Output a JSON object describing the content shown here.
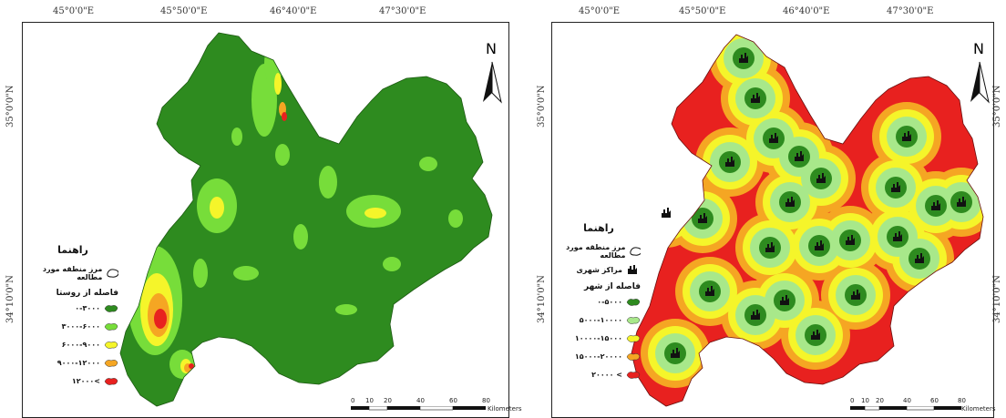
{
  "left_map": {
    "top_ticks": [
      "45°0'0\"E",
      "45°50'0\"E",
      "46°40'0\"E",
      "47°30'0\"E"
    ],
    "side_ticks": [
      "35°0'0\"N",
      "34°10'0\"N"
    ],
    "north_label": "N",
    "legend": {
      "title": "راهنما",
      "boundary_label": "مرز منطقه مورد مطالعه",
      "subtitle": "فاصله از روستا",
      "classes": [
        {
          "label": "۰-۳۰۰۰",
          "color": "#2e8b1f"
        },
        {
          "label": "۳۰۰۰-۶۰۰۰",
          "color": "#77dd3a"
        },
        {
          "label": "۶۰۰۰-۹۰۰۰",
          "color": "#f5f52a"
        },
        {
          "label": "۹۰۰۰-۱۲۰۰۰",
          "color": "#f5a623"
        },
        {
          "label": ">۱۲۰۰۰",
          "color": "#e8211f"
        }
      ]
    },
    "scale": {
      "ticks": [
        "0",
        "10",
        "20",
        "40",
        "60",
        "80"
      ],
      "unit": "Kilometers"
    }
  },
  "right_map": {
    "top_ticks": [
      "45°0'0\"E",
      "45°50'0\"E",
      "46°40'0\"E",
      "47°30'0\"E"
    ],
    "side_ticks": [
      "35°0'0\"N",
      "34°10'0\"N"
    ],
    "right_side_ticks": [
      "35°0'0\"N",
      "34°10'0\"N"
    ],
    "north_label": "N",
    "legend": {
      "title": "راهنما",
      "boundary_label": "مرز منطقه مورد مطالعه",
      "centers_label": "مراکز شهری",
      "subtitle": "فاصله از شهر",
      "classes": [
        {
          "label": "۰-۵۰۰۰",
          "color": "#2e8b1f"
        },
        {
          "label": "۵۰۰۰-۱۰۰۰۰",
          "color": "#a8e88a"
        },
        {
          "label": "۱۰۰۰۰-۱۵۰۰۰",
          "color": "#f5f52a"
        },
        {
          "label": "۱۵۰۰۰-۲۰۰۰۰",
          "color": "#f5a623"
        },
        {
          "label": "> ۲۰۰۰۰",
          "color": "#e8211f"
        }
      ]
    },
    "scale": {
      "ticks": [
        "0",
        "10",
        "20",
        "40",
        "60",
        "80"
      ],
      "unit": "Kilometers"
    }
  }
}
